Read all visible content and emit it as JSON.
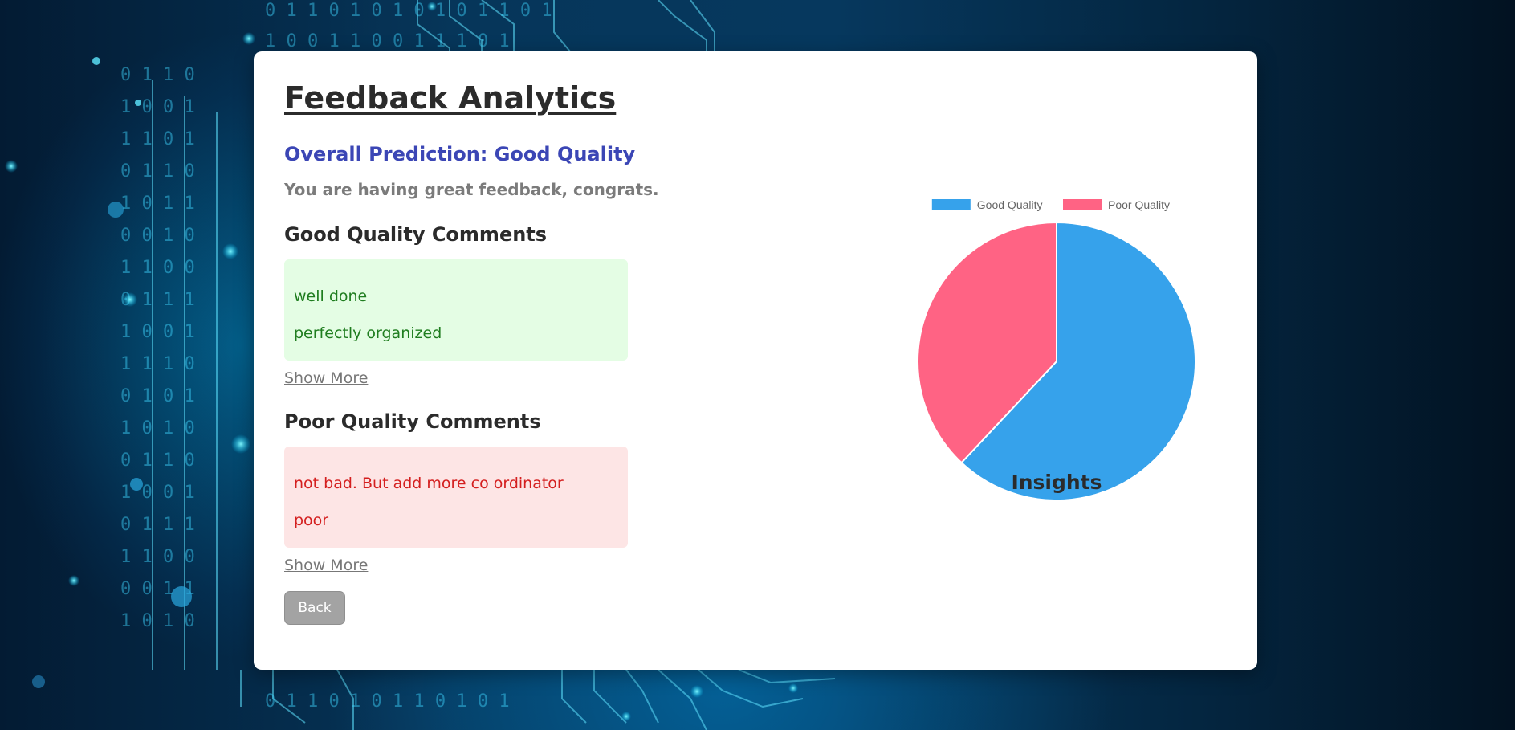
{
  "page": {
    "title": "Feedback Analytics",
    "prediction": "Overall Prediction: Good Quality",
    "message": "You are having great feedback, congrats."
  },
  "good_section": {
    "heading": "Good Quality Comments",
    "comments": [
      "well done",
      "perfectly organized"
    ],
    "show_more_label": "Show More"
  },
  "poor_section": {
    "heading": "Poor Quality Comments",
    "comments": [
      "not bad. But add more co ordinator",
      "poor"
    ],
    "show_more_label": "Show More"
  },
  "back_label": "Back",
  "colors": {
    "good": "#36a2eb",
    "poor": "#ff6384",
    "prediction_text": "#3b46b5"
  },
  "chart_data": {
    "type": "pie",
    "title": "Insights",
    "categories": [
      "Good Quality",
      "Poor Quality"
    ],
    "values": [
      62,
      38
    ],
    "legend_position": "top"
  }
}
